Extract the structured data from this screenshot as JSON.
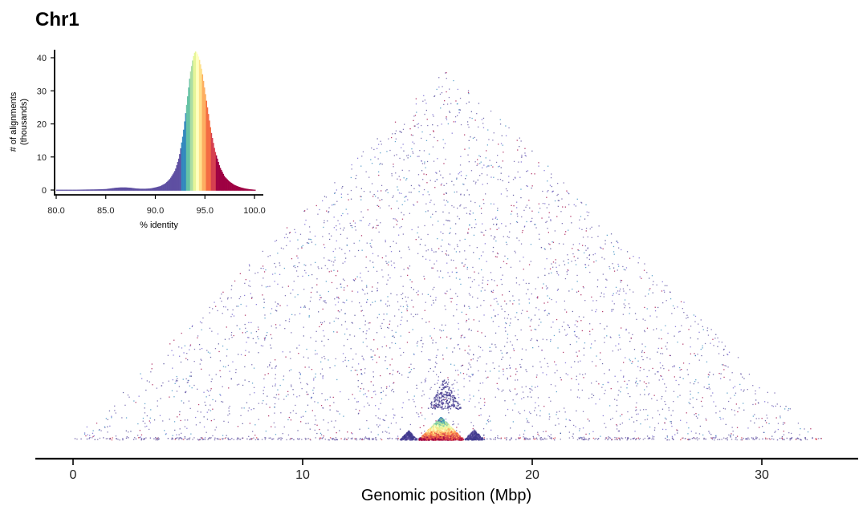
{
  "chart_data": [
    {
      "type": "heatmap",
      "title": "Chr1",
      "xlabel": "Genomic position (Mbp)",
      "xlim": [
        -1.6,
        34.5
      ],
      "x_ticks": [
        "0",
        "10",
        "20",
        "30"
      ],
      "x_tick_values": [
        0,
        10,
        20,
        30
      ],
      "data_extent_mbp": [
        0,
        32.6
      ],
      "dense_block_mbp": [
        15.0,
        17.0
      ],
      "secondary_blocks_mbp": [
        [
          14.2,
          15.0
        ],
        [
          17.0,
          17.9
        ],
        [
          15.4,
          16.9
        ]
      ],
      "grid": false,
      "legend": "none",
      "colormap": [
        "#5e4fa2",
        "#3288bd",
        "#66c2a5",
        "#abdda4",
        "#e6f598",
        "#ffffbf",
        "#fee08b",
        "#fdae61",
        "#f46d43",
        "#d53e4f",
        "#9e0142"
      ]
    },
    {
      "type": "bar",
      "xlabel": "% identity",
      "ylabel": "# of alignments\n(thousands)",
      "ylabel_lines": [
        "# of alignments",
        "(thousands)"
      ],
      "xlim": [
        80,
        100.5
      ],
      "ylim": [
        -1.5,
        43
      ],
      "x_ticks": [
        "80.0",
        "85.0",
        "90.0",
        "95.0",
        "100.0"
      ],
      "x_tick_values": [
        80,
        85,
        90,
        95,
        100
      ],
      "y_ticks": [
        "0",
        "10",
        "20",
        "30",
        "40"
      ],
      "y_tick_values": [
        0,
        10,
        20,
        30,
        40
      ],
      "grid": false,
      "legend": "none",
      "x": [
        80,
        81,
        82,
        83,
        84,
        85,
        85.5,
        86,
        86.5,
        87,
        87.5,
        88,
        88.5,
        89,
        89.5,
        90,
        90.5,
        91,
        91.5,
        92,
        92.4,
        92.8,
        93.2,
        93.5,
        93.8,
        94.0,
        94.2,
        94.4,
        94.7,
        95.0,
        95.3,
        95.6,
        96.0,
        96.5,
        97.0,
        97.5,
        98.0,
        98.5,
        99.0,
        99.5,
        100.0
      ],
      "values": [
        0.1,
        0.1,
        0.1,
        0.15,
        0.2,
        0.3,
        0.5,
        0.7,
        0.8,
        0.8,
        0.7,
        0.5,
        0.4,
        0.4,
        0.5,
        0.8,
        1.2,
        2,
        3.5,
        6,
        10,
        17,
        27,
        35,
        40,
        42,
        41.5,
        40,
        36,
        30,
        24,
        18,
        12,
        7,
        4,
        2.5,
        1.5,
        0.9,
        0.5,
        0.25,
        0.1
      ]
    }
  ]
}
